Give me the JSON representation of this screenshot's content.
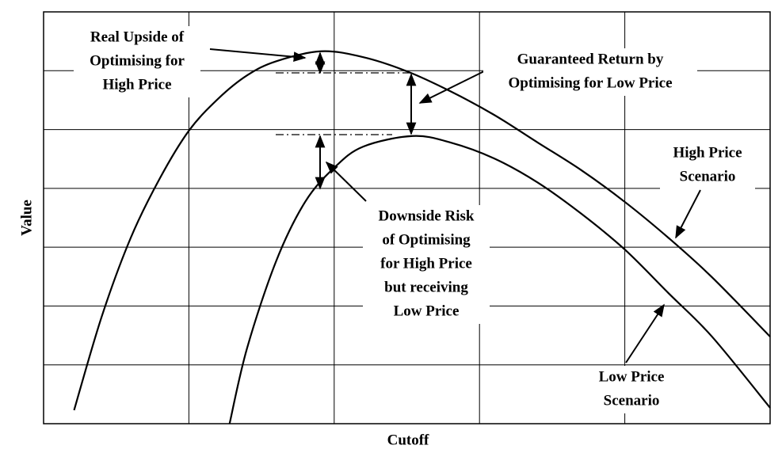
{
  "chart_data": {
    "type": "line",
    "x_label": "Cutoff",
    "y_label": "Value",
    "xlim": [
      0,
      5
    ],
    "ylim": [
      0,
      7
    ],
    "xgrid": [
      1,
      2,
      3,
      4
    ],
    "ygrid": [
      1,
      2,
      3,
      4,
      5,
      6
    ],
    "series": [
      {
        "label_lines": [
          "High Price",
          "Scenario"
        ],
        "color": "#000000",
        "x": [
          0.21,
          0.4,
          0.6,
          0.8,
          1.0,
          1.2,
          1.4,
          1.6,
          1.91,
          2.2,
          2.5,
          2.8,
          3.1,
          3.4,
          3.7,
          4.0,
          4.3,
          4.6,
          5.0
        ],
        "values": [
          0.23,
          1.82,
          3.16,
          4.17,
          4.98,
          5.52,
          5.92,
          6.16,
          6.33,
          6.23,
          5.99,
          5.65,
          5.25,
          4.78,
          4.31,
          3.77,
          3.16,
          2.49,
          1.48
        ]
      },
      {
        "label_lines": [
          "Low Price",
          "Scenario"
        ],
        "color": "#000000",
        "x": [
          1.28,
          1.4,
          1.6,
          1.8,
          2.0,
          2.2,
          2.54,
          2.8,
          3.1,
          3.4,
          3.7,
          4.0,
          4.3,
          4.6,
          5.0
        ],
        "values": [
          0,
          1.28,
          2.76,
          3.77,
          4.35,
          4.71,
          4.89,
          4.78,
          4.51,
          4.1,
          3.57,
          2.96,
          2.22,
          1.48,
          0.27
        ]
      }
    ],
    "annotations": [
      {
        "lines": [
          "Real Upside of",
          "Optimising for",
          "High Price"
        ]
      },
      {
        "lines": [
          "Guaranteed Return by",
          "Optimising for Low Price"
        ]
      },
      {
        "lines": [
          "Downside Risk",
          "of Optimising",
          "for High Price",
          "but receiving",
          "Low Price"
        ]
      }
    ]
  }
}
